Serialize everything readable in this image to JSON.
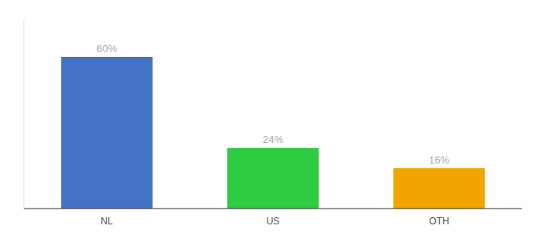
{
  "chart_data": {
    "type": "bar",
    "categories": [
      "NL",
      "US",
      "OTH"
    ],
    "values": [
      60,
      24,
      16
    ],
    "value_labels": [
      "60%",
      "24%",
      "16%"
    ],
    "colors": [
      "#4472c4",
      "#2ecc40",
      "#f0a500"
    ],
    "ylim": [
      0,
      75
    ],
    "data_labels": true,
    "tick_labels": "x"
  }
}
